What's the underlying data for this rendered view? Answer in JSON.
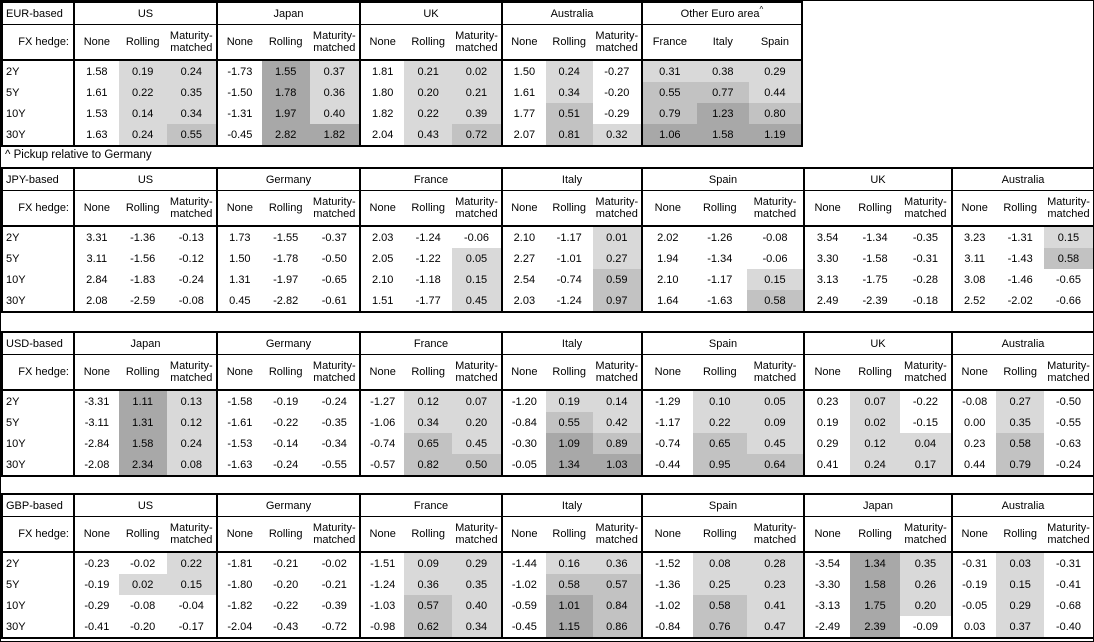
{
  "fx_hedge_label": "FX hedge:",
  "footnote": "^ Pickup relative to Germany",
  "col_headers": [
    "None",
    "Rolling",
    "Maturity-matched"
  ],
  "row_labels": [
    "2Y",
    "5Y",
    "10Y",
    "30Y"
  ],
  "heatmap": {
    "light": "#d9d9d9",
    "medium": "#c2c2c2",
    "dark": "#a8a8a8"
  },
  "tables": [
    {
      "base_label": "EUR-based",
      "panels": [
        {
          "title": "US",
          "shade_from": 1,
          "rows": [
            [
              "1.58",
              "0.19",
              "0.24"
            ],
            [
              "1.61",
              "0.22",
              "0.35"
            ],
            [
              "1.53",
              "0.14",
              "0.34"
            ],
            [
              "1.63",
              "0.24",
              "0.55"
            ]
          ]
        },
        {
          "title": "Japan",
          "shade_from": 1,
          "rows": [
            [
              "-1.73",
              "1.55",
              "0.37"
            ],
            [
              "-1.50",
              "1.78",
              "0.36"
            ],
            [
              "-1.31",
              "1.97",
              "0.40"
            ],
            [
              "-0.45",
              "2.82",
              "1.82"
            ]
          ]
        },
        {
          "title": "UK",
          "shade_from": 1,
          "rows": [
            [
              "1.81",
              "0.21",
              "0.02"
            ],
            [
              "1.80",
              "0.20",
              "0.21"
            ],
            [
              "1.82",
              "0.22",
              "0.39"
            ],
            [
              "2.04",
              "0.43",
              "0.72"
            ]
          ]
        },
        {
          "title": "Australia",
          "shade_from": 1,
          "rows": [
            [
              "1.50",
              "0.24",
              "-0.27"
            ],
            [
              "1.61",
              "0.34",
              "-0.20"
            ],
            [
              "1.77",
              "0.51",
              "-0.29"
            ],
            [
              "2.07",
              "0.81",
              "0.32"
            ]
          ]
        },
        {
          "title": "Other Euro area",
          "sup": "^",
          "cols": [
            "France",
            "Italy",
            "Spain"
          ],
          "shade_from": 0,
          "rows": [
            [
              "0.31",
              "0.38",
              "0.29"
            ],
            [
              "0.55",
              "0.77",
              "0.44"
            ],
            [
              "0.79",
              "1.23",
              "0.80"
            ],
            [
              "1.06",
              "1.58",
              "1.19"
            ]
          ]
        }
      ]
    },
    {
      "base_label": "JPY-based",
      "panels": [
        {
          "title": "US",
          "shade_from": 1,
          "rows": [
            [
              "3.31",
              "-1.36",
              "-0.13"
            ],
            [
              "3.11",
              "-1.56",
              "-0.12"
            ],
            [
              "2.84",
              "-1.83",
              "-0.24"
            ],
            [
              "2.08",
              "-2.59",
              "-0.08"
            ]
          ]
        },
        {
          "title": "Germany",
          "shade_from": 1,
          "rows": [
            [
              "1.73",
              "-1.55",
              "-0.37"
            ],
            [
              "1.50",
              "-1.78",
              "-0.50"
            ],
            [
              "1.31",
              "-1.97",
              "-0.65"
            ],
            [
              "0.45",
              "-2.82",
              "-0.61"
            ]
          ]
        },
        {
          "title": "France",
          "shade_from": 1,
          "rows": [
            [
              "2.03",
              "-1.24",
              "-0.06"
            ],
            [
              "2.05",
              "-1.22",
              "0.05"
            ],
            [
              "2.10",
              "-1.18",
              "0.15"
            ],
            [
              "1.51",
              "-1.77",
              "0.45"
            ]
          ]
        },
        {
          "title": "Italy",
          "shade_from": 1,
          "rows": [
            [
              "2.10",
              "-1.17",
              "0.01"
            ],
            [
              "2.27",
              "-1.01",
              "0.27"
            ],
            [
              "2.54",
              "-0.74",
              "0.59"
            ],
            [
              "2.03",
              "-1.24",
              "0.97"
            ]
          ]
        },
        {
          "title": "Spain",
          "shade_from": 1,
          "rows": [
            [
              "2.02",
              "-1.26",
              "-0.08"
            ],
            [
              "1.94",
              "-1.34",
              "-0.06"
            ],
            [
              "2.10",
              "-1.17",
              "0.15"
            ],
            [
              "1.64",
              "-1.63",
              "0.58"
            ]
          ]
        },
        {
          "title": "UK",
          "shade_from": 1,
          "rows": [
            [
              "3.54",
              "-1.34",
              "-0.35"
            ],
            [
              "3.30",
              "-1.58",
              "-0.31"
            ],
            [
              "3.13",
              "-1.75",
              "-0.28"
            ],
            [
              "2.49",
              "-2.39",
              "-0.18"
            ]
          ]
        },
        {
          "title": "Australia",
          "shade_from": 1,
          "rows": [
            [
              "3.23",
              "-1.31",
              "0.15"
            ],
            [
              "3.11",
              "-1.43",
              "0.58"
            ],
            [
              "3.08",
              "-1.46",
              "-0.65"
            ],
            [
              "2.52",
              "-2.02",
              "-0.66"
            ]
          ]
        }
      ]
    },
    {
      "base_label": "USD-based",
      "panels": [
        {
          "title": "Japan",
          "shade_from": 1,
          "rows": [
            [
              "-3.31",
              "1.11",
              "0.13"
            ],
            [
              "-3.11",
              "1.31",
              "0.12"
            ],
            [
              "-2.84",
              "1.58",
              "0.24"
            ],
            [
              "-2.08",
              "2.34",
              "0.08"
            ]
          ]
        },
        {
          "title": "Germany",
          "shade_from": 1,
          "rows": [
            [
              "-1.58",
              "-0.19",
              "-0.24"
            ],
            [
              "-1.61",
              "-0.22",
              "-0.35"
            ],
            [
              "-1.53",
              "-0.14",
              "-0.34"
            ],
            [
              "-1.63",
              "-0.24",
              "-0.55"
            ]
          ]
        },
        {
          "title": "France",
          "shade_from": 1,
          "rows": [
            [
              "-1.27",
              "0.12",
              "0.07"
            ],
            [
              "-1.06",
              "0.34",
              "0.20"
            ],
            [
              "-0.74",
              "0.65",
              "0.45"
            ],
            [
              "-0.57",
              "0.82",
              "0.50"
            ]
          ]
        },
        {
          "title": "Italy",
          "shade_from": 1,
          "rows": [
            [
              "-1.20",
              "0.19",
              "0.14"
            ],
            [
              "-0.84",
              "0.55",
              "0.42"
            ],
            [
              "-0.30",
              "1.09",
              "0.89"
            ],
            [
              "-0.05",
              "1.34",
              "1.03"
            ]
          ]
        },
        {
          "title": "Spain",
          "shade_from": 1,
          "rows": [
            [
              "-1.29",
              "0.10",
              "0.05"
            ],
            [
              "-1.17",
              "0.22",
              "0.09"
            ],
            [
              "-0.74",
              "0.65",
              "0.45"
            ],
            [
              "-0.44",
              "0.95",
              "0.64"
            ]
          ]
        },
        {
          "title": "UK",
          "shade_from": 1,
          "rows": [
            [
              "0.23",
              "0.07",
              "-0.22"
            ],
            [
              "0.19",
              "0.02",
              "-0.15"
            ],
            [
              "0.29",
              "0.12",
              "0.04"
            ],
            [
              "0.41",
              "0.24",
              "0.17"
            ]
          ]
        },
        {
          "title": "Australia",
          "shade_from": 1,
          "rows": [
            [
              "-0.08",
              "0.27",
              "-0.50"
            ],
            [
              "0.00",
              "0.35",
              "-0.55"
            ],
            [
              "0.23",
              "0.58",
              "-0.63"
            ],
            [
              "0.44",
              "0.79",
              "-0.24"
            ]
          ]
        }
      ]
    },
    {
      "base_label": "GBP-based",
      "panels": [
        {
          "title": "US",
          "shade_from": 1,
          "rows": [
            [
              "-0.23",
              "-0.02",
              "0.22"
            ],
            [
              "-0.19",
              "0.02",
              "0.15"
            ],
            [
              "-0.29",
              "-0.08",
              "-0.04"
            ],
            [
              "-0.41",
              "-0.20",
              "-0.17"
            ]
          ]
        },
        {
          "title": "Germany",
          "shade_from": 1,
          "rows": [
            [
              "-1.81",
              "-0.21",
              "-0.02"
            ],
            [
              "-1.80",
              "-0.20",
              "-0.21"
            ],
            [
              "-1.82",
              "-0.22",
              "-0.39"
            ],
            [
              "-2.04",
              "-0.43",
              "-0.72"
            ]
          ]
        },
        {
          "title": "France",
          "shade_from": 1,
          "rows": [
            [
              "-1.51",
              "0.09",
              "0.29"
            ],
            [
              "-1.24",
              "0.36",
              "0.35"
            ],
            [
              "-1.03",
              "0.57",
              "0.40"
            ],
            [
              "-0.98",
              "0.62",
              "0.34"
            ]
          ]
        },
        {
          "title": "Italy",
          "shade_from": 1,
          "rows": [
            [
              "-1.44",
              "0.16",
              "0.36"
            ],
            [
              "-1.02",
              "0.58",
              "0.57"
            ],
            [
              "-0.59",
              "1.01",
              "0.84"
            ],
            [
              "-0.45",
              "1.15",
              "0.86"
            ]
          ]
        },
        {
          "title": "Spain",
          "shade_from": 1,
          "rows": [
            [
              "-1.52",
              "0.08",
              "0.28"
            ],
            [
              "-1.36",
              "0.25",
              "0.23"
            ],
            [
              "-1.02",
              "0.58",
              "0.41"
            ],
            [
              "-0.84",
              "0.76",
              "0.47"
            ]
          ]
        },
        {
          "title": "Japan",
          "shade_from": 1,
          "rows": [
            [
              "-3.54",
              "1.34",
              "0.35"
            ],
            [
              "-3.30",
              "1.58",
              "0.26"
            ],
            [
              "-3.13",
              "1.75",
              "0.20"
            ],
            [
              "-2.49",
              "2.39",
              "-0.09"
            ]
          ]
        },
        {
          "title": "Australia",
          "shade_from": 1,
          "rows": [
            [
              "-0.31",
              "0.03",
              "-0.31"
            ],
            [
              "-0.19",
              "0.15",
              "-0.41"
            ],
            [
              "-0.05",
              "0.29",
              "-0.68"
            ],
            [
              "0.03",
              "0.37",
              "-0.40"
            ]
          ]
        }
      ]
    }
  ]
}
